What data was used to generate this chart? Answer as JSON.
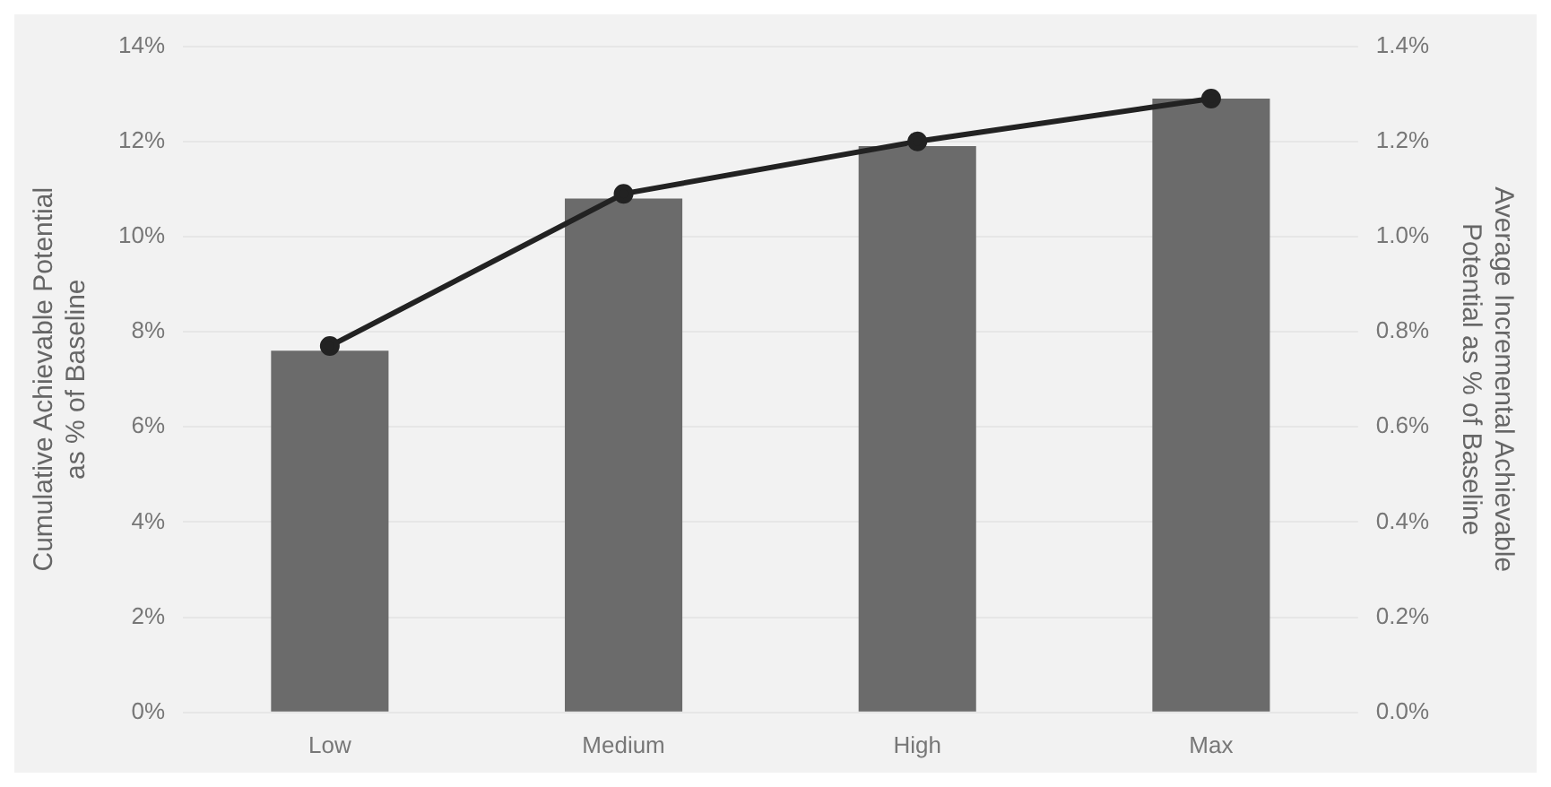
{
  "chart_data": {
    "type": "bar",
    "categories": [
      "Low",
      "Medium",
      "High",
      "Max"
    ],
    "series": [
      {
        "color": "#6b6b6b",
        "values": [
          7.6,
          10.8,
          11.9,
          12.9
        ]
      },
      {
        "type": "line",
        "axis": "y2",
        "color": "#222222",
        "values": [
          0.77,
          1.09,
          1.2,
          1.29
        ]
      }
    ],
    "ylabel": "Cumulative Achievable Potential as % of Baseline",
    "y2label": "Average Incremental Achievable Potential as % of Baseline",
    "ylim": [
      0,
      14
    ],
    "yticks": [
      {
        "value": 0,
        "label": "0%"
      },
      {
        "value": 2,
        "label": "2%"
      },
      {
        "value": 4,
        "label": "4%"
      },
      {
        "value": 6,
        "label": "6%"
      },
      {
        "value": 8,
        "label": "8%"
      },
      {
        "value": 10,
        "label": "10%"
      },
      {
        "value": 12,
        "label": "12%"
      },
      {
        "value": 14,
        "label": "14%"
      }
    ],
    "y2lim": [
      0,
      1.4
    ],
    "y2ticks": [
      {
        "value": 0,
        "label": "0.0%"
      },
      {
        "value": 0.2,
        "label": "0.2%"
      },
      {
        "value": 0.4,
        "label": "0.4%"
      },
      {
        "value": 0.6,
        "label": "0.6%"
      },
      {
        "value": 0.8,
        "label": "0.8%"
      },
      {
        "value": 1.0,
        "label": "1.0%"
      },
      {
        "value": 1.2,
        "label": "1.2%"
      },
      {
        "value": 1.4,
        "label": "1.4%"
      }
    ],
    "grid": "y",
    "legend": false,
    "marker": "circle",
    "line_style": "solid"
  }
}
